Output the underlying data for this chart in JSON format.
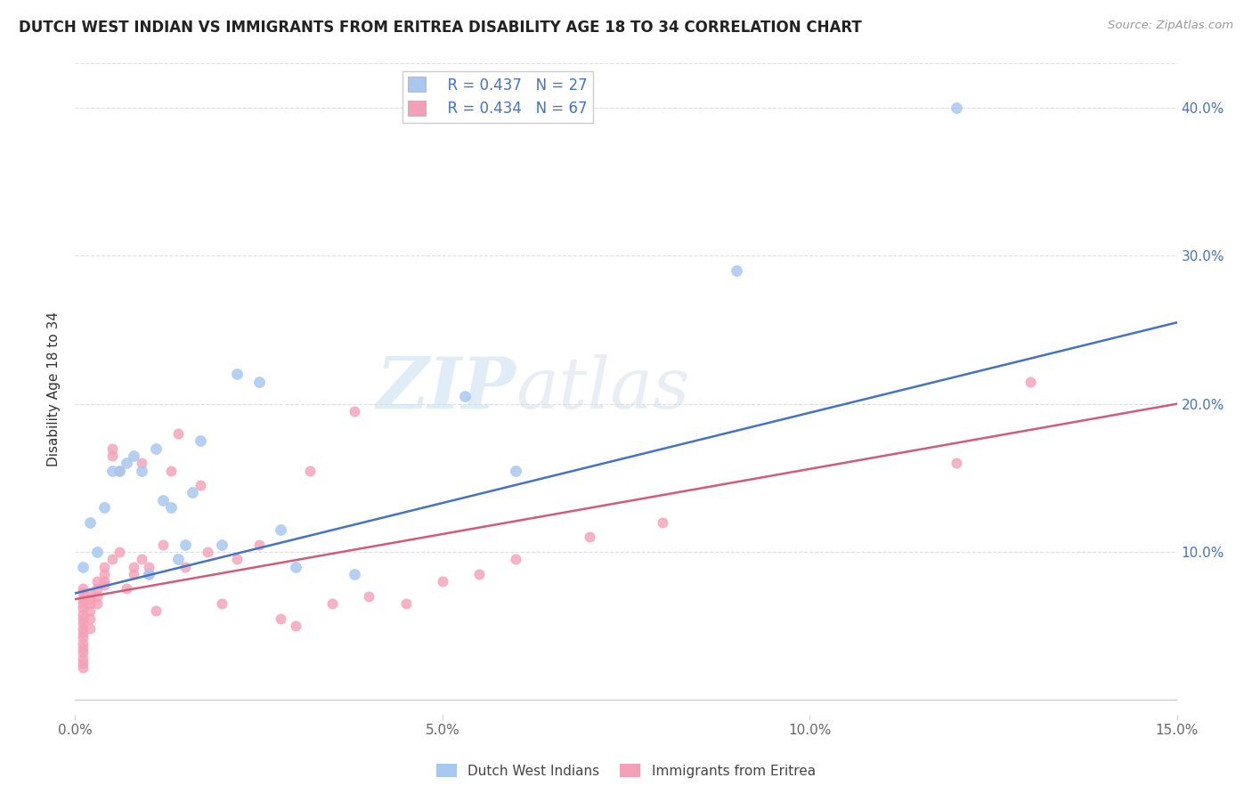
{
  "title": "DUTCH WEST INDIAN VS IMMIGRANTS FROM ERITREA DISABILITY AGE 18 TO 34 CORRELATION CHART",
  "source": "Source: ZipAtlas.com",
  "ylabel": "Disability Age 18 to 34",
  "xlim": [
    0.0,
    0.15
  ],
  "ylim": [
    -0.01,
    0.43
  ],
  "plot_ylim": [
    0.0,
    0.43
  ],
  "xticks": [
    0.0,
    0.05,
    0.1,
    0.15
  ],
  "xticklabels": [
    "0.0%",
    "5.0%",
    "10.0%",
    "15.0%"
  ],
  "yticks": [
    0.1,
    0.2,
    0.3,
    0.4
  ],
  "yticklabels": [
    "10.0%",
    "20.0%",
    "30.0%",
    "40.0%"
  ],
  "legend_r1": "R = 0.437",
  "legend_n1": "N = 27",
  "legend_r2": "R = 0.434",
  "legend_n2": "N = 67",
  "color_blue": "#a8c8f0",
  "color_pink": "#f4a0b8",
  "line_color_blue": "#4472c4",
  "line_color_pink": "#d45a7a",
  "watermark": "ZIPatlas",
  "blue_line_x0": 0.0,
  "blue_line_y0": 0.072,
  "blue_line_x1": 0.15,
  "blue_line_y1": 0.255,
  "pink_line_x0": 0.0,
  "pink_line_y0": 0.068,
  "pink_line_x1": 0.15,
  "pink_line_y1": 0.2,
  "dutch_x": [
    0.001,
    0.002,
    0.003,
    0.004,
    0.005,
    0.006,
    0.007,
    0.008,
    0.009,
    0.01,
    0.011,
    0.012,
    0.013,
    0.014,
    0.015,
    0.016,
    0.017,
    0.02,
    0.022,
    0.025,
    0.028,
    0.03,
    0.038,
    0.053,
    0.06,
    0.09,
    0.12
  ],
  "dutch_y": [
    0.09,
    0.12,
    0.1,
    0.13,
    0.155,
    0.155,
    0.16,
    0.165,
    0.155,
    0.085,
    0.17,
    0.135,
    0.13,
    0.095,
    0.105,
    0.14,
    0.175,
    0.105,
    0.22,
    0.215,
    0.115,
    0.09,
    0.085,
    0.205,
    0.155,
    0.29,
    0.4
  ],
  "eritrea_x": [
    0.001,
    0.001,
    0.001,
    0.001,
    0.001,
    0.001,
    0.001,
    0.001,
    0.001,
    0.001,
    0.001,
    0.001,
    0.001,
    0.001,
    0.001,
    0.001,
    0.001,
    0.002,
    0.002,
    0.002,
    0.002,
    0.002,
    0.002,
    0.003,
    0.003,
    0.003,
    0.003,
    0.004,
    0.004,
    0.004,
    0.004,
    0.005,
    0.005,
    0.005,
    0.006,
    0.006,
    0.007,
    0.008,
    0.008,
    0.009,
    0.009,
    0.01,
    0.01,
    0.011,
    0.012,
    0.013,
    0.014,
    0.015,
    0.017,
    0.018,
    0.02,
    0.022,
    0.025,
    0.028,
    0.03,
    0.032,
    0.035,
    0.038,
    0.04,
    0.045,
    0.05,
    0.055,
    0.06,
    0.07,
    0.08,
    0.12,
    0.13
  ],
  "eritrea_y": [
    0.075,
    0.072,
    0.068,
    0.065,
    0.062,
    0.058,
    0.055,
    0.052,
    0.048,
    0.045,
    0.042,
    0.038,
    0.035,
    0.032,
    0.028,
    0.025,
    0.022,
    0.072,
    0.068,
    0.065,
    0.06,
    0.055,
    0.048,
    0.08,
    0.075,
    0.07,
    0.065,
    0.09,
    0.085,
    0.08,
    0.078,
    0.17,
    0.165,
    0.095,
    0.155,
    0.1,
    0.075,
    0.085,
    0.09,
    0.095,
    0.16,
    0.09,
    0.085,
    0.06,
    0.105,
    0.155,
    0.18,
    0.09,
    0.145,
    0.1,
    0.065,
    0.095,
    0.105,
    0.055,
    0.05,
    0.155,
    0.065,
    0.195,
    0.07,
    0.065,
    0.08,
    0.085,
    0.095,
    0.11,
    0.12,
    0.16,
    0.215
  ]
}
